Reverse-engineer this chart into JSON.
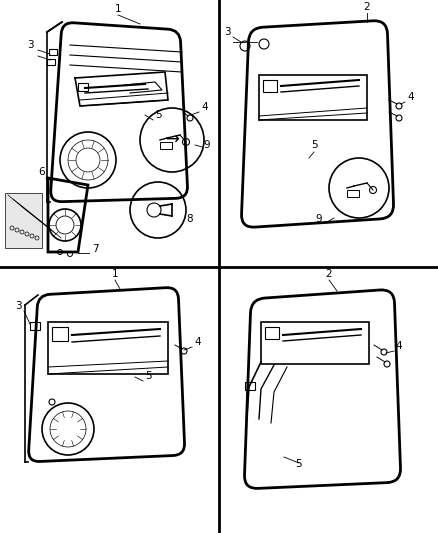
{
  "background_color": "#ffffff",
  "line_color": "#000000",
  "fig_width": 4.38,
  "fig_height": 5.33,
  "dpi": 100,
  "label_fontsize": 7.5
}
